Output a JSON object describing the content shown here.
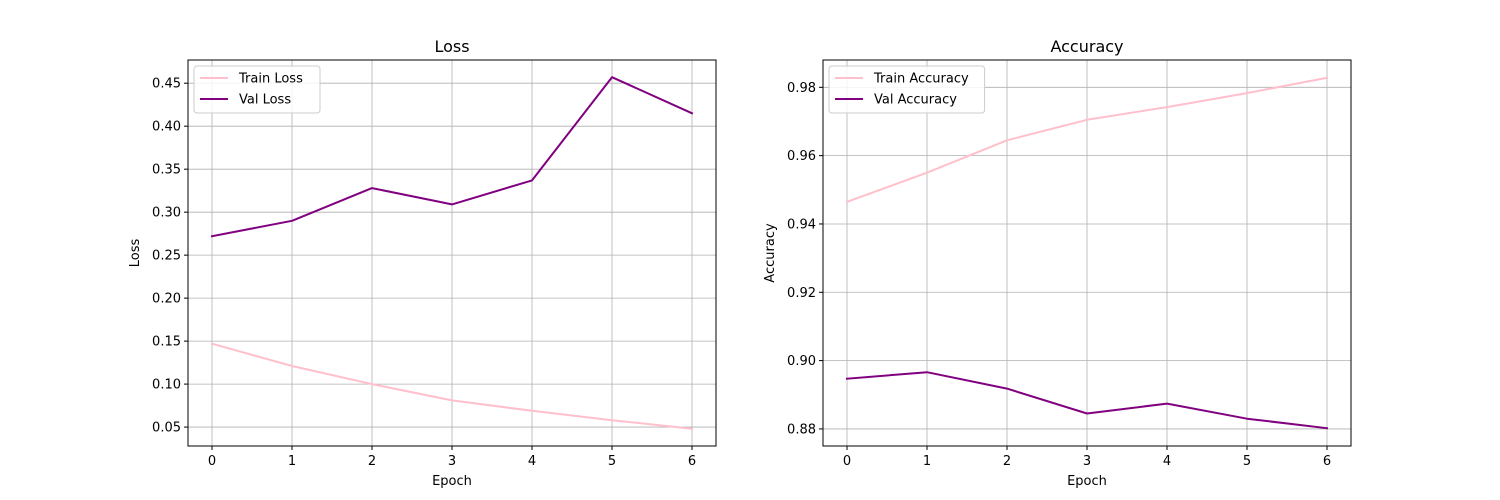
{
  "chart_data": [
    {
      "type": "line",
      "title": "Loss",
      "xlabel": "Epoch",
      "ylabel": "Loss",
      "x": [
        0,
        1,
        2,
        3,
        4,
        5,
        6
      ],
      "xticks": [
        "0",
        "1",
        "2",
        "3",
        "4",
        "5",
        "6"
      ],
      "yticks": [
        "0.05",
        "0.10",
        "0.15",
        "0.20",
        "0.25",
        "0.30",
        "0.35",
        "0.40",
        "0.45"
      ],
      "xlim": [
        -0.3,
        6.3
      ],
      "ylim": [
        0.028,
        0.477
      ],
      "grid": true,
      "legend_position": "upper-left",
      "series": [
        {
          "name": "Train Loss",
          "color": "#ffc0cb",
          "values": [
            0.147,
            0.121,
            0.1,
            0.081,
            0.069,
            0.058,
            0.048
          ]
        },
        {
          "name": "Val Loss",
          "color": "#800080",
          "values": [
            0.272,
            0.29,
            0.328,
            0.309,
            0.337,
            0.457,
            0.415
          ]
        }
      ]
    },
    {
      "type": "line",
      "title": "Accuracy",
      "xlabel": "Epoch",
      "ylabel": "Accuracy",
      "x": [
        0,
        1,
        2,
        3,
        4,
        5,
        6
      ],
      "xticks": [
        "0",
        "1",
        "2",
        "3",
        "4",
        "5",
        "6"
      ],
      "yticks": [
        "0.88",
        "0.90",
        "0.92",
        "0.94",
        "0.96",
        "0.98"
      ],
      "xlim": [
        -0.3,
        6.3
      ],
      "ylim": [
        0.875,
        0.988
      ],
      "grid": true,
      "legend_position": "upper-left",
      "series": [
        {
          "name": "Train Accuracy",
          "color": "#ffc0cb",
          "values": [
            0.9465,
            0.955,
            0.9645,
            0.9705,
            0.9742,
            0.9783,
            0.9828
          ]
        },
        {
          "name": "Val Accuracy",
          "color": "#800080",
          "values": [
            0.8947,
            0.8966,
            0.8918,
            0.8845,
            0.8874,
            0.883,
            0.8802
          ]
        }
      ]
    }
  ]
}
